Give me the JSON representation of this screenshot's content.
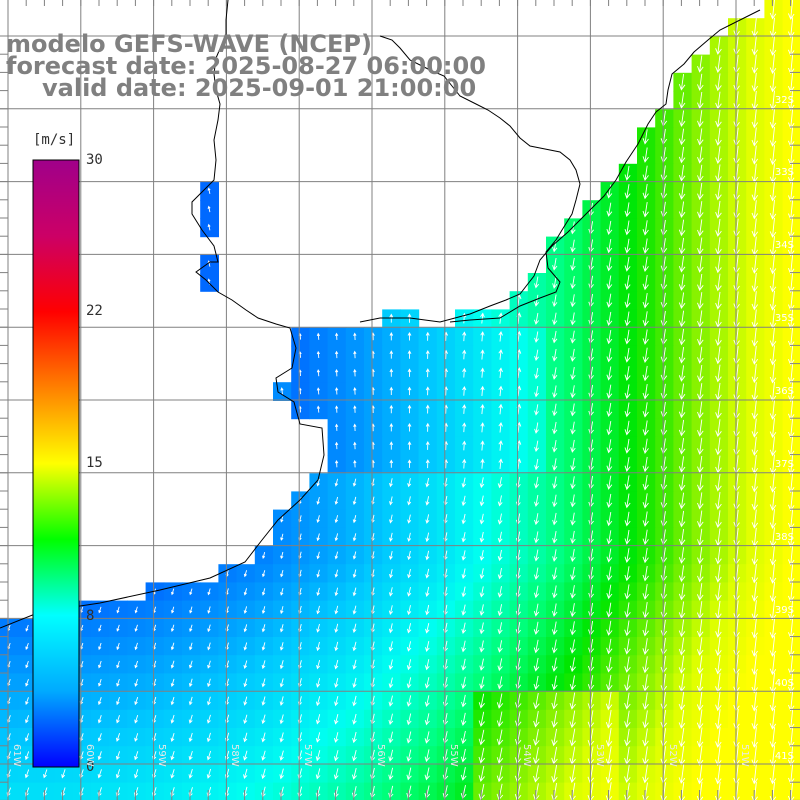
{
  "title": {
    "line1": "modelo GEFS-WAVE (NCEP)",
    "line2": "forecast date: 2025-08-27 06:00:00",
    "line3": "valid date: 2025-09-01 21:00:00"
  },
  "colorbar": {
    "unit": "[m/s]",
    "ticks": [
      "30",
      "22",
      "15",
      "8",
      "0"
    ],
    "colors": [
      "#0000ff",
      "#00aaff",
      "#00ffff",
      "#00ff00",
      "#ffff00",
      "#ff8000",
      "#ff0000",
      "#cc0066",
      "#a0008a"
    ]
  },
  "lat_labels": [
    "32S",
    "33S",
    "34S",
    "35S",
    "36S",
    "37S",
    "38S",
    "39S",
    "40S",
    "41S"
  ],
  "lon_labels": [
    "61W",
    "60W",
    "59W",
    "58W",
    "57W",
    "56W",
    "55W",
    "54W",
    "53W",
    "52W",
    "51W"
  ],
  "colors": {
    "land": "#ffffff",
    "coast": "#000000",
    "grid": "#808080",
    "arrows": "#ffffff"
  }
}
